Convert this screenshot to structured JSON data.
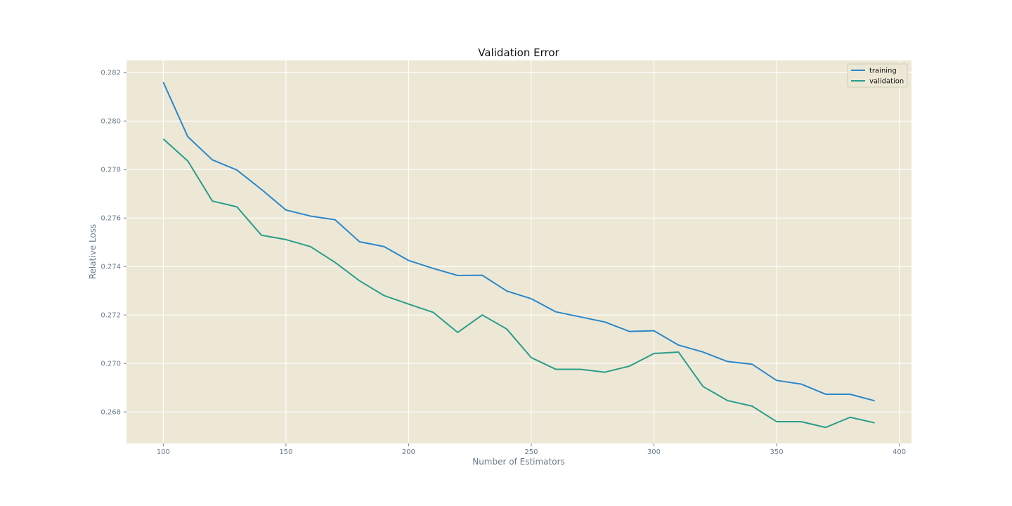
{
  "chart_data": {
    "type": "line",
    "title": "Validation Error",
    "xlabel": "Number of Estimators",
    "ylabel": "Relative Loss",
    "xlim": [
      85,
      405
    ],
    "ylim": [
      0.2667,
      0.2825
    ],
    "xticks": [
      100,
      150,
      200,
      250,
      300,
      350,
      400
    ],
    "xtick_labels": [
      "100",
      "150",
      "200",
      "250",
      "300",
      "350",
      "400"
    ],
    "yticks": [
      0.268,
      0.27,
      0.272,
      0.274,
      0.276,
      0.278,
      0.28,
      0.282
    ],
    "ytick_labels": [
      "0.268",
      "0.270",
      "0.272",
      "0.274",
      "0.276",
      "0.278",
      "0.280",
      "0.282"
    ],
    "grid": true,
    "legend_position": "top-right",
    "background_color": "#ede8d6",
    "grid_color": "#ffffff",
    "x": [
      100,
      110,
      120,
      130,
      140,
      150,
      160,
      170,
      180,
      190,
      200,
      210,
      220,
      230,
      240,
      250,
      260,
      270,
      280,
      290,
      300,
      310,
      320,
      330,
      340,
      350,
      360,
      370,
      380,
      390
    ],
    "series": [
      {
        "name": "training",
        "color": "#2b87c9",
        "values": [
          0.2816,
          0.27935,
          0.2784,
          0.27798,
          0.27718,
          0.27633,
          0.27608,
          0.27593,
          0.27502,
          0.27482,
          0.27425,
          0.27392,
          0.27363,
          0.27364,
          0.27299,
          0.27267,
          0.27213,
          0.27192,
          0.27171,
          0.27132,
          0.27135,
          0.27076,
          0.27047,
          0.27008,
          0.26997,
          0.2693,
          0.26915,
          0.26873,
          0.26873,
          0.26846
        ]
      },
      {
        "name": "validation",
        "color": "#2a9d8a",
        "values": [
          0.27926,
          0.27835,
          0.2767,
          0.27646,
          0.27529,
          0.27511,
          0.27482,
          0.27417,
          0.27341,
          0.2728,
          0.27245,
          0.27211,
          0.27128,
          0.272,
          0.27142,
          0.27024,
          0.26976,
          0.26976,
          0.26964,
          0.26989,
          0.27041,
          0.27047,
          0.26905,
          0.26847,
          0.26824,
          0.2676,
          0.2676,
          0.26736,
          0.26778,
          0.26755
        ]
      }
    ]
  }
}
